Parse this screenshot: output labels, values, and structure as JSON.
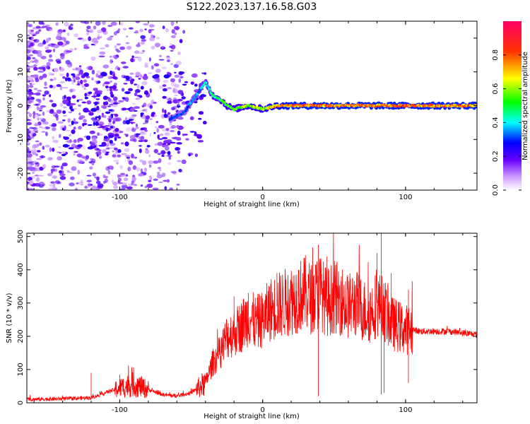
{
  "title": "S122.2023.137.16.58.G03",
  "chart_data": [
    {
      "type": "heatmap",
      "xlabel": "Height of straight line (km)",
      "ylabel": "Frequency (Hz)",
      "xlim": [
        -165,
        150
      ],
      "ylim": [
        -25,
        25
      ],
      "xticks": [
        -100,
        0,
        100
      ],
      "yticks": [
        -20,
        -10,
        0,
        10,
        20
      ],
      "colorbar": {
        "label": "Normalized spectral amplitude",
        "range": [
          0.0,
          1.0
        ],
        "ticks": [
          0.0,
          0.2,
          0.4,
          0.6,
          0.8
        ],
        "colors": [
          "#ffffff",
          "#6600ff",
          "#0000ff",
          "#00ffff",
          "#00ff00",
          "#ffff00",
          "#ff0000",
          "#ff0066"
        ]
      },
      "ridge": {
        "x": [
          -65,
          -55,
          -45,
          -40,
          -35,
          -30,
          -25,
          -20,
          -10,
          0,
          10,
          20,
          40,
          60,
          80,
          100,
          120,
          150
        ],
        "y": [
          -4,
          -2,
          4,
          7,
          3,
          2,
          0,
          -1,
          0,
          -1,
          0,
          0,
          0,
          0,
          0,
          0,
          0,
          0
        ],
        "amplitude": [
          0.3,
          0.35,
          0.4,
          0.45,
          0.5,
          0.55,
          0.6,
          0.6,
          0.65,
          0.65,
          0.8,
          0.85,
          0.85,
          0.85,
          0.85,
          0.85,
          0.85,
          0.85
        ]
      }
    },
    {
      "type": "line",
      "xlabel": "Height of straight line (km)",
      "ylabel": "SNR (10 * v/v)",
      "xlim": [
        -165,
        150
      ],
      "ylim": [
        0,
        510
      ],
      "xticks": [
        -100,
        0,
        100
      ],
      "yticks": [
        0,
        100,
        200,
        300,
        400,
        500
      ],
      "color": "#ff0000",
      "x": [
        -165,
        -140,
        -120,
        -110,
        -100,
        -90,
        -80,
        -70,
        -60,
        -50,
        -40,
        -35,
        -30,
        -25,
        -20,
        -15,
        -10,
        -5,
        0,
        5,
        10,
        15,
        20,
        25,
        30,
        35,
        40,
        45,
        50,
        55,
        60,
        65,
        70,
        75,
        80,
        85,
        90,
        95,
        100,
        105,
        110,
        120,
        130,
        140,
        150
      ],
      "y": [
        10,
        12,
        15,
        30,
        45,
        55,
        40,
        25,
        20,
        30,
        60,
        120,
        150,
        200,
        210,
        230,
        260,
        240,
        250,
        280,
        290,
        300,
        310,
        320,
        330,
        310,
        340,
        300,
        320,
        310,
        290,
        300,
        280,
        270,
        300,
        280,
        240,
        230,
        220,
        220,
        215,
        215,
        215,
        210,
        205
      ],
      "spikes": [
        {
          "x": -120,
          "y": 90
        },
        {
          "x": -100,
          "y": 85
        },
        {
          "x": -30,
          "y": 190
        },
        {
          "x": -20,
          "y": 320
        },
        {
          "x": -10,
          "y": 330
        },
        {
          "x": 10,
          "y": 390
        },
        {
          "x": 25,
          "y": 400
        },
        {
          "x": 35,
          "y": 410
        },
        {
          "x": 39,
          "y": 475
        },
        {
          "x": 45,
          "y": 440
        },
        {
          "x": 55,
          "y": 380
        },
        {
          "x": 80,
          "y": 450
        },
        {
          "x": 83,
          "y": 510
        },
        {
          "x": 90,
          "y": 390
        },
        {
          "x": 102,
          "y": 340
        }
      ],
      "dips": [
        {
          "x": 39,
          "y": 20
        },
        {
          "x": 83,
          "y": 25
        },
        {
          "x": 85,
          "y": 30
        },
        {
          "x": 102,
          "y": 60
        },
        {
          "x": 75,
          "y": 200
        }
      ]
    }
  ]
}
